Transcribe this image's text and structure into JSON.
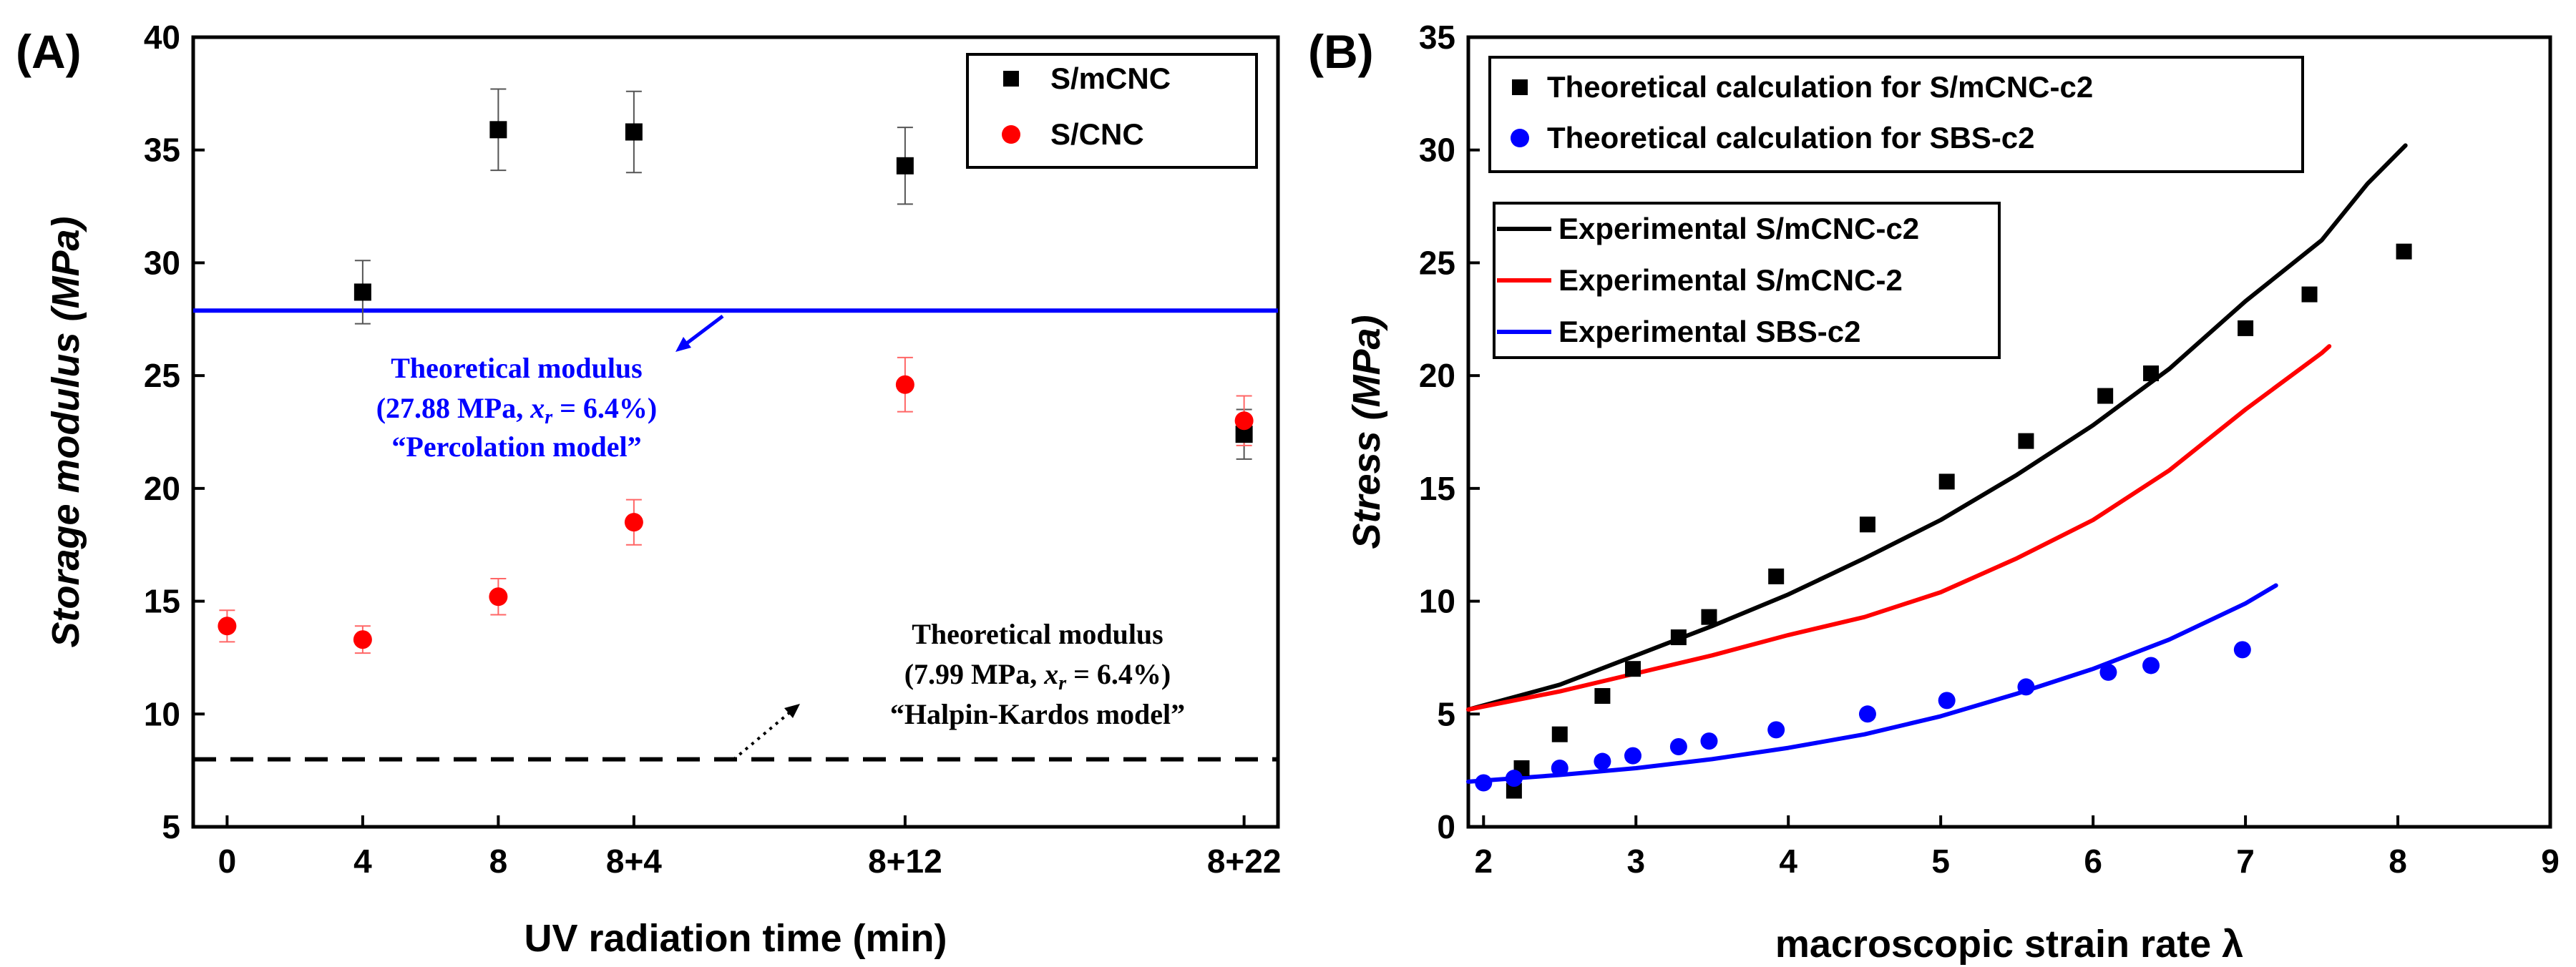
{
  "chart_data": [
    {
      "panel_label": "(A)",
      "type": "scatter",
      "xlabel": "UV radiation time (min)",
      "ylabel": "Storage modulus (MPa)",
      "categories": [
        "0",
        "4",
        "8",
        "8+4",
        "8+12",
        "8+22"
      ],
      "category_positions": [
        0,
        4,
        8,
        12,
        20,
        30
      ],
      "xlim": [
        -1,
        31
      ],
      "ylim": [
        5,
        40
      ],
      "yticks": [
        5,
        10,
        15,
        20,
        25,
        30,
        35,
        40
      ],
      "series": [
        {
          "name": "S/mCNC",
          "marker": "square",
          "color": "#000000",
          "values": [
            null,
            28.7,
            35.9,
            35.8,
            34.3,
            22.4
          ],
          "errors": [
            null,
            1.4,
            1.8,
            1.8,
            1.7,
            1.1
          ]
        },
        {
          "name": "S/CNC",
          "marker": "circle",
          "color": "#ff0000",
          "values": [
            13.9,
            13.3,
            15.2,
            18.5,
            24.6,
            23.0
          ],
          "errors": [
            0.7,
            0.6,
            0.8,
            1.0,
            1.2,
            1.1
          ]
        }
      ],
      "reference_lines": [
        {
          "value": 27.88,
          "style": "solid",
          "color": "#0000ff"
        },
        {
          "value": 7.99,
          "style": "dashed",
          "color": "#000000"
        }
      ],
      "annotations": [
        {
          "color": "#0000ff",
          "lines": {
            "title": "Theoretical modulus",
            "pre": "(27.88 MPa, ",
            "var": "x",
            "sub": "r",
            "post": " = 6.4%)",
            "model": "“Percolation model”"
          }
        },
        {
          "color": "#000000",
          "lines": {
            "title": "Theoretical modulus",
            "pre": "(7.99 MPa, ",
            "var": "x",
            "sub": "r",
            "post": " = 6.4%)",
            "model": "“Halpin-Kardos model”"
          }
        }
      ],
      "legend_position": "top-right"
    },
    {
      "panel_label": "(B)",
      "type": "line",
      "xlabel": "macroscopic strain rate λ",
      "ylabel": "Stress (MPa)",
      "xlim": [
        1.9,
        9
      ],
      "ylim": [
        0,
        35
      ],
      "xticks": [
        2,
        3,
        4,
        5,
        6,
        7,
        8,
        9
      ],
      "yticks": [
        0,
        5,
        10,
        15,
        20,
        25,
        30,
        35
      ],
      "scatter_series": [
        {
          "name": "Theoretical calculation for S/mCNC-c2",
          "marker": "square",
          "color": "#000000",
          "x": [
            2.2,
            2.25,
            2.5,
            2.78,
            2.98,
            3.28,
            3.48,
            3.92,
            4.52,
            5.04,
            5.56,
            6.08,
            6.38,
            7.0,
            7.42,
            8.04
          ],
          "y": [
            1.6,
            2.6,
            4.1,
            5.8,
            7.0,
            8.4,
            9.3,
            11.1,
            13.4,
            15.3,
            17.1,
            19.1,
            20.1,
            22.1,
            23.6,
            25.5
          ]
        },
        {
          "name": "Theoretical calculation for SBS-c2",
          "marker": "circle",
          "color": "#0000ff",
          "x": [
            2.0,
            2.2,
            2.5,
            2.78,
            2.98,
            3.28,
            3.48,
            3.92,
            4.52,
            5.04,
            5.56,
            6.1,
            6.38,
            6.98
          ],
          "y": [
            1.95,
            2.15,
            2.6,
            2.9,
            3.15,
            3.55,
            3.8,
            4.3,
            5.0,
            5.6,
            6.2,
            6.85,
            7.15,
            7.85
          ]
        }
      ],
      "line_series": [
        {
          "name": "Experimental S/mCNC-c2",
          "color": "#000000",
          "x": [
            1.9,
            2.5,
            3.0,
            3.5,
            4.0,
            4.5,
            5.0,
            5.5,
            6.0,
            6.5,
            7.0,
            7.5,
            7.8,
            8.05
          ],
          "y": [
            5.2,
            6.3,
            7.6,
            8.9,
            10.3,
            11.9,
            13.6,
            15.6,
            17.8,
            20.3,
            23.3,
            26.0,
            28.5,
            30.2
          ]
        },
        {
          "name": "Experimental S/mCNC-2",
          "color": "#ff0000",
          "x": [
            1.9,
            2.5,
            3.0,
            3.5,
            4.0,
            4.5,
            5.0,
            5.5,
            6.0,
            6.5,
            7.0,
            7.5,
            7.55
          ],
          "y": [
            5.2,
            6.0,
            6.8,
            7.6,
            8.5,
            9.3,
            10.4,
            11.9,
            13.6,
            15.8,
            18.5,
            21.0,
            21.3
          ]
        },
        {
          "name": "Experimental SBS-c2",
          "color": "#0000ff",
          "x": [
            1.9,
            2.5,
            3.0,
            3.5,
            4.0,
            4.5,
            5.0,
            5.5,
            6.0,
            6.5,
            7.0,
            7.2
          ],
          "y": [
            2.0,
            2.3,
            2.6,
            3.0,
            3.5,
            4.1,
            4.9,
            5.9,
            7.0,
            8.3,
            9.9,
            10.7
          ]
        }
      ],
      "legend_position": "top-left"
    }
  ]
}
